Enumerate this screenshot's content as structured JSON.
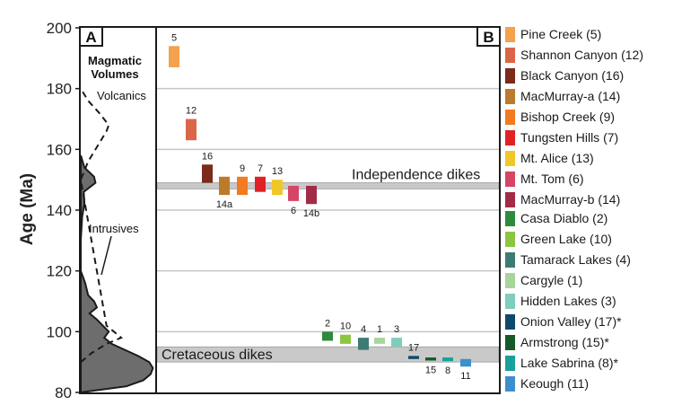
{
  "chart_data": {
    "type": "bar",
    "ylabel": "Age (Ma)",
    "ylim": [
      80,
      200
    ],
    "yticks": [
      80,
      100,
      120,
      140,
      160,
      180,
      200
    ],
    "panel_a": {
      "letter": "A",
      "title_line1": "Magmatic",
      "title_line2": "Volumes",
      "volcanics_label": "Volcanics",
      "intrusives_label": "Intrusives",
      "intrusive_profile": [
        [
          80,
          0.0
        ],
        [
          82,
          0.62
        ],
        [
          84,
          0.85
        ],
        [
          86,
          0.95
        ],
        [
          88,
          0.98
        ],
        [
          90,
          0.93
        ],
        [
          92,
          0.78
        ],
        [
          94,
          0.6
        ],
        [
          96,
          0.42
        ],
        [
          98,
          0.32
        ],
        [
          100,
          0.38
        ],
        [
          102,
          0.3
        ],
        [
          104,
          0.22
        ],
        [
          106,
          0.12
        ],
        [
          108,
          0.22
        ],
        [
          110,
          0.18
        ],
        [
          112,
          0.1
        ],
        [
          114,
          0.08
        ],
        [
          116,
          0.06
        ],
        [
          118,
          0.03
        ],
        [
          120,
          0.0
        ],
        [
          130,
          0.0
        ],
        [
          138,
          0.02
        ],
        [
          142,
          0.05
        ],
        [
          146,
          0.04
        ],
        [
          149,
          0.2
        ],
        [
          151,
          0.18
        ],
        [
          154,
          0.05
        ],
        [
          158,
          0.0
        ]
      ],
      "volcanics_profile": [
        [
          90,
          0.0
        ],
        [
          93,
          0.15
        ],
        [
          96,
          0.35
        ],
        [
          98,
          0.55
        ],
        [
          100,
          0.45
        ],
        [
          102,
          0.35
        ],
        [
          150,
          0.0
        ],
        [
          156,
          0.1
        ],
        [
          162,
          0.25
        ],
        [
          166,
          0.35
        ],
        [
          168,
          0.38
        ],
        [
          172,
          0.25
        ],
        [
          176,
          0.1
        ],
        [
          180,
          0.0
        ]
      ]
    },
    "panel_b": {
      "letter": "B",
      "bands": [
        {
          "label": "Independence dikes",
          "y_min": 147,
          "y_max": 149
        },
        {
          "label": "Cretaceous dikes",
          "y_min": 90,
          "y_max": 95
        }
      ],
      "bars": [
        {
          "label": "5",
          "color": "#F4A24E",
          "y_min": 187,
          "y_max": 194
        },
        {
          "label": "12",
          "color": "#DA6647",
          "y_min": 163,
          "y_max": 170
        },
        {
          "label": "16",
          "color": "#7B2B19",
          "y_min": 149,
          "y_max": 155
        },
        {
          "label": "14a",
          "color": "#BA7C2C",
          "y_min": 145,
          "y_max": 151
        },
        {
          "label": "9",
          "color": "#F27A21",
          "y_min": 145,
          "y_max": 151
        },
        {
          "label": "7",
          "color": "#E02227",
          "y_min": 146,
          "y_max": 151
        },
        {
          "label": "13",
          "color": "#F1C628",
          "y_min": 145,
          "y_max": 150
        },
        {
          "label": "6",
          "color": "#D64565",
          "y_min": 143,
          "y_max": 148
        },
        {
          "label": "14b",
          "color": "#A22B48",
          "y_min": 142,
          "y_max": 148
        },
        {
          "label": "2",
          "color": "#2F8A3D",
          "y_min": 97,
          "y_max": 100
        },
        {
          "label": "10",
          "color": "#8CC641",
          "y_min": 96,
          "y_max": 99
        },
        {
          "label": "4",
          "color": "#3E7C73",
          "y_min": 94,
          "y_max": 98
        },
        {
          "label": "1",
          "color": "#A8D59A",
          "y_min": 96,
          "y_max": 98
        },
        {
          "label": "3",
          "color": "#7FCDBD",
          "y_min": 95,
          "y_max": 98
        },
        {
          "label": "17",
          "color": "#0E4A6B",
          "y_min": 91,
          "y_max": 92
        },
        {
          "label": "15",
          "color": "#155B28",
          "y_min": 90.5,
          "y_max": 91.5
        },
        {
          "label": "8",
          "color": "#17A19A",
          "y_min": 90.3,
          "y_max": 91.5
        },
        {
          "label": "11",
          "color": "#3C8FCC",
          "y_min": 88.5,
          "y_max": 91
        }
      ]
    },
    "legend": [
      {
        "label": "Pine Creek (5)",
        "color": "#F4A24E"
      },
      {
        "label": "Shannon Canyon (12)",
        "color": "#DA6647"
      },
      {
        "label": "Black Canyon (16)",
        "color": "#7B2B19"
      },
      {
        "label": "MacMurray-a (14)",
        "color": "#BA7C2C"
      },
      {
        "label": "Bishop Creek (9)",
        "color": "#F27A21"
      },
      {
        "label": "Tungsten Hills (7)",
        "color": "#E02227"
      },
      {
        "label": "Mt. Alice (13)",
        "color": "#F1C628"
      },
      {
        "label": "Mt. Tom (6)",
        "color": "#D64565"
      },
      {
        "label": "MacMurray-b (14)",
        "color": "#A22B48"
      },
      {
        "label": "Casa Diablo (2)",
        "color": "#2F8A3D"
      },
      {
        "label": "Green Lake (10)",
        "color": "#8CC641"
      },
      {
        "label": "Tamarack Lakes (4)",
        "color": "#3E7C73"
      },
      {
        "label": "Cargyle (1)",
        "color": "#A8D59A"
      },
      {
        "label": "Hidden Lakes (3)",
        "color": "#7FCDBD"
      },
      {
        "label": "Onion Valley (17)*",
        "color": "#0E4A6B"
      },
      {
        "label": "Armstrong (15)*",
        "color": "#155B28"
      },
      {
        "label": "Lake Sabrina (8)*",
        "color": "#17A19A"
      },
      {
        "label": "Keough (11)",
        "color": "#3C8FCC"
      }
    ]
  }
}
